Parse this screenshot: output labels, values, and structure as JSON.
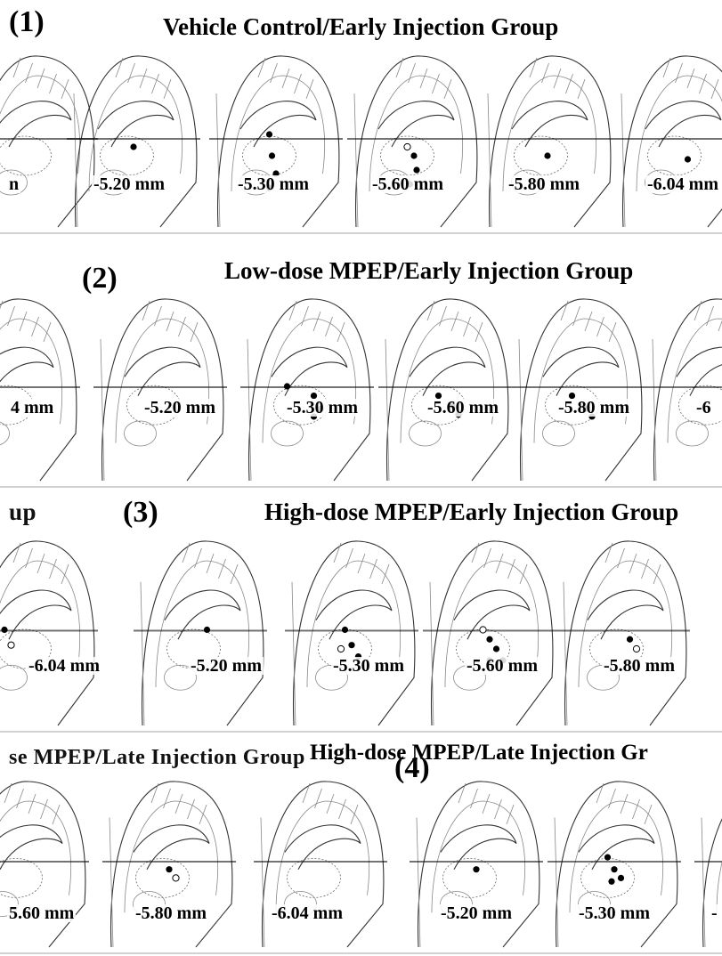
{
  "panels": [
    {
      "number": "(1)",
      "title": "Vehicle Control/Early Injection Group",
      "sections": [
        {
          "label": "n",
          "markers": [
            [
              0.05,
              0.55,
              1
            ]
          ]
        },
        {
          "label": "-5.20 mm",
          "markers": [
            [
              0.5,
              0.55,
              1
            ]
          ]
        },
        {
          "label": "-5.30 mm",
          "markers": [
            [
              0.45,
              0.48,
              1
            ],
            [
              0.47,
              0.6,
              1
            ],
            [
              0.5,
              0.7,
              1
            ],
            [
              0.45,
              0.78,
              1
            ]
          ]
        },
        {
          "label": "-5.60 mm",
          "markers": [
            [
              0.45,
              0.55,
              0
            ],
            [
              0.5,
              0.6,
              1
            ],
            [
              0.52,
              0.68,
              1
            ],
            [
              0.47,
              0.76,
              1
            ]
          ]
        },
        {
          "label": "-5.80 mm",
          "markers": [
            [
              0.5,
              0.6,
              1
            ]
          ]
        },
        {
          "label": "-6.04 mm",
          "markers": [
            [
              0.55,
              0.62,
              1
            ]
          ]
        }
      ]
    },
    {
      "number": "(2)",
      "title": "Low-dose MPEP/Early Injection Group",
      "sections": [
        {
          "label": "4 mm",
          "markers": [
            [
              0.05,
              0.55,
              1
            ]
          ]
        },
        {
          "label": "-5.20 mm",
          "markers": []
        },
        {
          "label": "-5.30 mm",
          "markers": [
            [
              0.35,
              0.5,
              1
            ],
            [
              0.55,
              0.55,
              1
            ],
            [
              0.6,
              0.62,
              1
            ],
            [
              0.55,
              0.66,
              1
            ]
          ]
        },
        {
          "label": "-5.60 mm",
          "markers": [
            [
              0.45,
              0.55,
              1
            ],
            [
              0.55,
              0.6,
              1
            ],
            [
              0.6,
              0.65,
              1
            ]
          ]
        },
        {
          "label": "-5.80 mm",
          "markers": [
            [
              0.45,
              0.55,
              1
            ],
            [
              0.55,
              0.62,
              1
            ],
            [
              0.6,
              0.66,
              1
            ]
          ]
        },
        {
          "label": "-6",
          "markers": []
        }
      ]
    },
    {
      "number": "(3)",
      "title": "High-dose MPEP/Early Injection Group",
      "prefix": "up",
      "sections": [
        {
          "label": "-6.04 mm",
          "markers": [
            [
              0.3,
              0.5,
              1
            ],
            [
              0.35,
              0.58,
              0
            ]
          ]
        },
        {
          "label": "-5.20 mm",
          "markers": [
            [
              0.55,
              0.5,
              1
            ]
          ]
        },
        {
          "label": "-5.30 mm",
          "markers": [
            [
              0.45,
              0.5,
              1
            ],
            [
              0.5,
              0.58,
              1
            ],
            [
              0.55,
              0.64,
              1
            ],
            [
              0.42,
              0.6,
              0
            ]
          ]
        },
        {
          "label": "-5.60 mm",
          "markers": [
            [
              0.45,
              0.5,
              0
            ],
            [
              0.5,
              0.55,
              1
            ],
            [
              0.55,
              0.6,
              1
            ],
            [
              0.6,
              0.66,
              1
            ],
            [
              0.5,
              0.66,
              1
            ]
          ]
        },
        {
          "label": "-5.80 mm",
          "markers": [
            [
              0.55,
              0.55,
              1
            ],
            [
              0.6,
              0.6,
              0
            ]
          ]
        }
      ]
    },
    {
      "number": "(4)",
      "title": "High-dose MPEP/Late Injection Gr",
      "prefix": "se MPEP/Late Injection Group",
      "sections": [
        {
          "label": "5.60 mm",
          "markers": [
            [
              0.25,
              0.5,
              1
            ],
            [
              0.28,
              0.6,
              1
            ]
          ]
        },
        {
          "label": "-5.80 mm",
          "markers": [
            [
              0.5,
              0.55,
              1
            ],
            [
              0.55,
              0.6,
              0
            ]
          ]
        },
        {
          "label": "-6.04 mm",
          "markers": []
        },
        {
          "label": "-5.20 mm",
          "markers": [
            [
              0.5,
              0.55,
              1
            ]
          ]
        },
        {
          "label": "-5.30 mm",
          "markers": [
            [
              0.45,
              0.48,
              1
            ],
            [
              0.5,
              0.55,
              1
            ],
            [
              0.55,
              0.6,
              1
            ],
            [
              0.48,
              0.62,
              1
            ]
          ]
        },
        {
          "label": "-",
          "markers": []
        }
      ]
    }
  ],
  "colors": {
    "ink": "#000000",
    "outline": "#333333",
    "background": "#ffffff"
  }
}
